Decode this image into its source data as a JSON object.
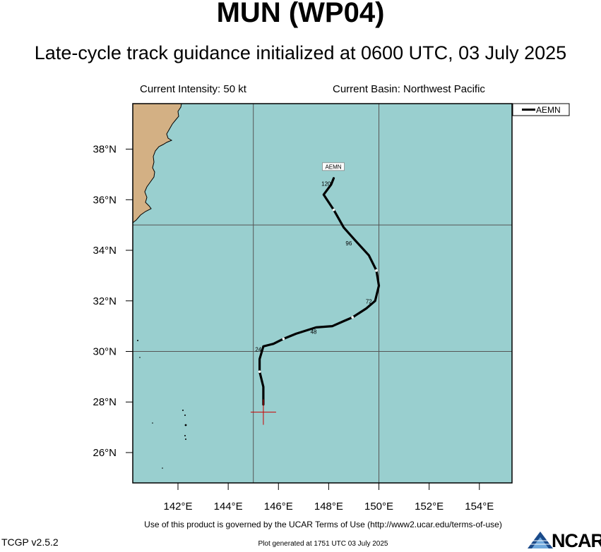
{
  "header": {
    "title": "MUN (WP04)",
    "subtitle": "Late-cycle track guidance initialized at 0600 UTC, 03 July 2025",
    "intensity": "Current Intensity: 50 kt",
    "basin": "Current Basin: Northwest Pacific"
  },
  "map": {
    "lon_range": [
      140.2,
      155.3
    ],
    "lat_range": [
      24.8,
      39.8
    ],
    "lon_ticks": [
      142,
      144,
      146,
      148,
      150,
      152,
      154
    ],
    "lat_ticks": [
      26,
      28,
      30,
      32,
      34,
      36,
      38
    ],
    "lon_tick_labels": [
      "142°E",
      "144°E",
      "146°E",
      "148°E",
      "150°E",
      "152°E",
      "154°E"
    ],
    "lat_tick_labels": [
      "26°N",
      "28°N",
      "30°N",
      "32°N",
      "34°N",
      "36°N",
      "38°N"
    ],
    "grid_lons": [
      145,
      150
    ],
    "grid_lats": [
      30,
      35
    ],
    "ocean_color": "#99CFCF",
    "land_color": "#D3B084",
    "current_position": {
      "lon": 145.4,
      "lat": 27.6
    },
    "current_position_color": "#cc0000"
  },
  "legend": {
    "entries": [
      {
        "label": "AEMN",
        "color": "#000000"
      }
    ]
  },
  "tracks": [
    {
      "name": "AEMN",
      "label": "AEMN",
      "color": "#000000",
      "points": [
        {
          "lon": 145.4,
          "lat": 27.9
        },
        {
          "lon": 145.4,
          "lat": 28.6
        },
        {
          "lon": 145.25,
          "lat": 29.2
        },
        {
          "lon": 145.25,
          "lat": 29.7
        },
        {
          "lon": 145.4,
          "lat": 30.2
        },
        {
          "lon": 145.8,
          "lat": 30.3
        },
        {
          "lon": 146.2,
          "lat": 30.5
        },
        {
          "lon": 146.7,
          "lat": 30.7
        },
        {
          "lon": 147.5,
          "lat": 30.95
        },
        {
          "lon": 148.15,
          "lat": 31.0
        },
        {
          "lon": 148.6,
          "lat": 31.2
        },
        {
          "lon": 148.95,
          "lat": 31.35
        },
        {
          "lon": 149.5,
          "lat": 31.7
        },
        {
          "lon": 149.85,
          "lat": 32.0
        },
        {
          "lon": 150.0,
          "lat": 32.6
        },
        {
          "lon": 149.9,
          "lat": 33.2
        },
        {
          "lon": 149.6,
          "lat": 33.8
        },
        {
          "lon": 149.05,
          "lat": 34.4
        },
        {
          "lon": 148.6,
          "lat": 34.9
        },
        {
          "lon": 148.2,
          "lat": 35.6
        },
        {
          "lon": 147.8,
          "lat": 36.2
        },
        {
          "lon": 148.1,
          "lat": 36.6
        },
        {
          "lon": 148.2,
          "lat": 36.85
        }
      ],
      "markers": [
        {
          "lon": 145.25,
          "lat": 29.2
        },
        {
          "lon": 146.2,
          "lat": 30.5
        },
        {
          "lon": 148.95,
          "lat": 31.35
        },
        {
          "lon": 149.9,
          "lat": 33.2
        },
        {
          "lon": 148.2,
          "lat": 35.6
        }
      ],
      "hour_labels": [
        {
          "text": "24",
          "lon": 145.2,
          "lat": 30.0
        },
        {
          "text": "48",
          "lon": 147.4,
          "lat": 30.7
        },
        {
          "text": "72",
          "lon": 149.6,
          "lat": 31.9
        },
        {
          "text": "96",
          "lon": 148.8,
          "lat": 34.2
        },
        {
          "text": "120",
          "lon": 147.9,
          "lat": 36.55
        }
      ]
    }
  ],
  "footer": {
    "terms": "Use of this product is governed by the UCAR Terms of Use (http://www2.ucar.edu/terms-of-use)",
    "version": "TCGP v2.5.2",
    "generated": "Plot generated at 1751 UTC   03 July 2025",
    "logo_text": "NCAR"
  }
}
